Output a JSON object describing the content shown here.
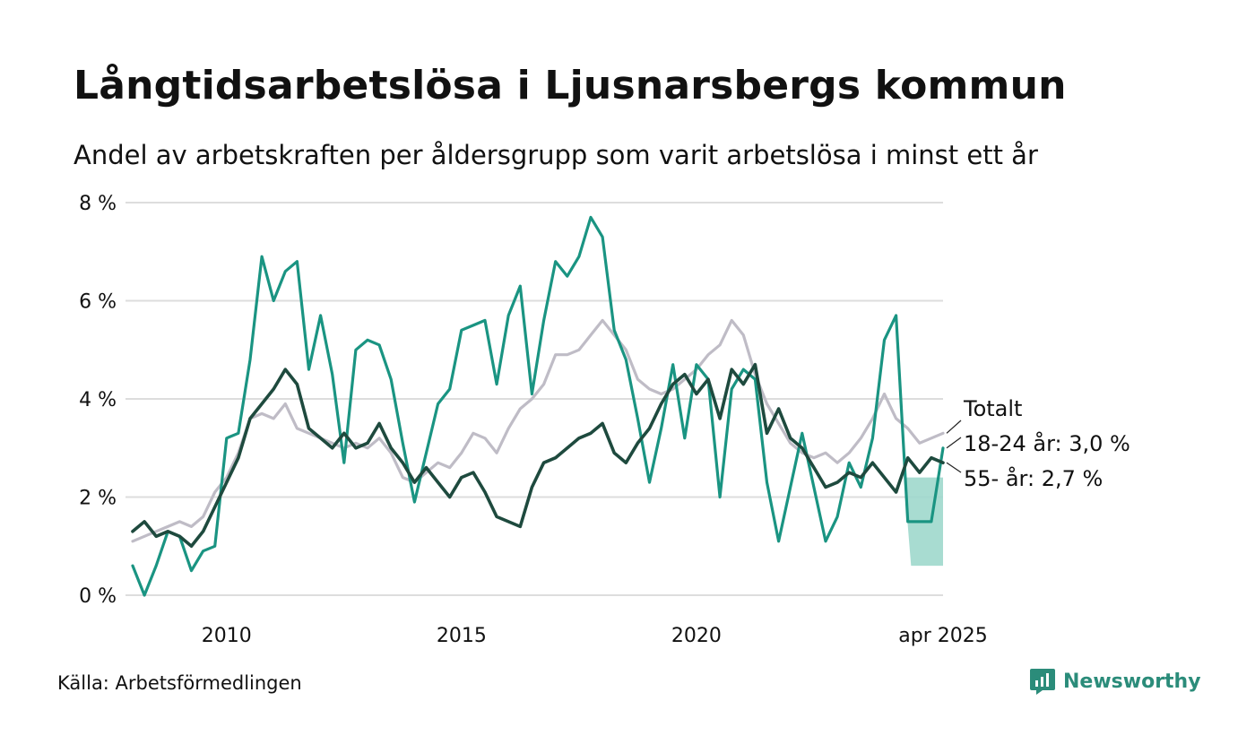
{
  "title": "Långtidsarbetslösa i Ljusnarsbergs kommun",
  "subtitle": "Andel av arbetskraften per åldersgrupp som varit arbetslösa i minst ett år",
  "source": "Källa: Arbetsförmedlingen",
  "brand": "Newsworthy",
  "colors": {
    "totalt": "#bfbcc6",
    "age_18_24": "#1a9482",
    "age_55": "#1e4a3e",
    "band": "#9fd8cc",
    "grid": "#dddddd"
  },
  "chart_data": {
    "type": "line",
    "title": "Långtidsarbetslösa i Ljusnarsbergs kommun",
    "ylabel": "",
    "xlabel": "",
    "ylim": [
      0,
      8
    ],
    "xlim": [
      "2008-01",
      "2025-04"
    ],
    "y_ticks": [
      "0 %",
      "2 %",
      "4 %",
      "6 %",
      "8 %"
    ],
    "x_ticks": [
      {
        "label": "2010",
        "date": "2010-01"
      },
      {
        "label": "2015",
        "date": "2015-01"
      },
      {
        "label": "2020",
        "date": "2020-01"
      },
      {
        "label": "apr 2025",
        "date": "2025-04"
      }
    ],
    "series": [
      {
        "name": "Totalt",
        "label": "Totalt",
        "points": [
          [
            "2008-01",
            1.1
          ],
          [
            "2008-04",
            1.2
          ],
          [
            "2008-07",
            1.3
          ],
          [
            "2008-10",
            1.4
          ],
          [
            "2009-01",
            1.5
          ],
          [
            "2009-04",
            1.4
          ],
          [
            "2009-07",
            1.6
          ],
          [
            "2009-10",
            2.1
          ],
          [
            "2010-01",
            2.4
          ],
          [
            "2010-04",
            2.9
          ],
          [
            "2010-07",
            3.6
          ],
          [
            "2010-10",
            3.7
          ],
          [
            "2011-01",
            3.6
          ],
          [
            "2011-04",
            3.9
          ],
          [
            "2011-07",
            3.4
          ],
          [
            "2011-10",
            3.3
          ],
          [
            "2012-01",
            3.2
          ],
          [
            "2012-04",
            3.1
          ],
          [
            "2012-07",
            3.0
          ],
          [
            "2012-10",
            3.1
          ],
          [
            "2013-01",
            3.0
          ],
          [
            "2013-04",
            3.2
          ],
          [
            "2013-07",
            2.9
          ],
          [
            "2013-10",
            2.4
          ],
          [
            "2014-01",
            2.3
          ],
          [
            "2014-04",
            2.5
          ],
          [
            "2014-07",
            2.7
          ],
          [
            "2014-10",
            2.6
          ],
          [
            "2015-01",
            2.9
          ],
          [
            "2015-04",
            3.3
          ],
          [
            "2015-07",
            3.2
          ],
          [
            "2015-10",
            2.9
          ],
          [
            "2016-01",
            3.4
          ],
          [
            "2016-04",
            3.8
          ],
          [
            "2016-07",
            4.0
          ],
          [
            "2016-10",
            4.3
          ],
          [
            "2017-01",
            4.9
          ],
          [
            "2017-04",
            4.9
          ],
          [
            "2017-07",
            5.0
          ],
          [
            "2017-10",
            5.3
          ],
          [
            "2018-01",
            5.6
          ],
          [
            "2018-04",
            5.3
          ],
          [
            "2018-07",
            5.0
          ],
          [
            "2018-10",
            4.4
          ],
          [
            "2019-01",
            4.2
          ],
          [
            "2019-04",
            4.1
          ],
          [
            "2019-07",
            4.2
          ],
          [
            "2019-10",
            4.4
          ],
          [
            "2020-01",
            4.6
          ],
          [
            "2020-04",
            4.9
          ],
          [
            "2020-07",
            5.1
          ],
          [
            "2020-10",
            5.6
          ],
          [
            "2021-01",
            5.3
          ],
          [
            "2021-04",
            4.5
          ],
          [
            "2021-07",
            3.9
          ],
          [
            "2021-10",
            3.5
          ],
          [
            "2022-01",
            3.1
          ],
          [
            "2022-04",
            2.9
          ],
          [
            "2022-07",
            2.8
          ],
          [
            "2022-10",
            2.9
          ],
          [
            "2023-01",
            2.7
          ],
          [
            "2023-04",
            2.9
          ],
          [
            "2023-07",
            3.2
          ],
          [
            "2023-10",
            3.6
          ],
          [
            "2024-01",
            4.1
          ],
          [
            "2024-04",
            3.6
          ],
          [
            "2024-07",
            3.4
          ],
          [
            "2024-10",
            3.1
          ],
          [
            "2025-01",
            3.2
          ],
          [
            "2025-04",
            3.3
          ]
        ]
      },
      {
        "name": "18-24 år",
        "label": "18-24 år: 3,0 %",
        "points": [
          [
            "2008-01",
            0.6
          ],
          [
            "2008-04",
            0.0
          ],
          [
            "2008-07",
            0.6
          ],
          [
            "2008-10",
            1.3
          ],
          [
            "2009-01",
            1.2
          ],
          [
            "2009-04",
            0.5
          ],
          [
            "2009-07",
            0.9
          ],
          [
            "2009-10",
            1.0
          ],
          [
            "2010-01",
            3.2
          ],
          [
            "2010-04",
            3.3
          ],
          [
            "2010-07",
            4.8
          ],
          [
            "2010-10",
            6.9
          ],
          [
            "2011-01",
            6.0
          ],
          [
            "2011-04",
            6.6
          ],
          [
            "2011-07",
            6.8
          ],
          [
            "2011-10",
            4.6
          ],
          [
            "2012-01",
            5.7
          ],
          [
            "2012-04",
            4.5
          ],
          [
            "2012-07",
            2.7
          ],
          [
            "2012-10",
            5.0
          ],
          [
            "2013-01",
            5.2
          ],
          [
            "2013-04",
            5.1
          ],
          [
            "2013-07",
            4.4
          ],
          [
            "2013-10",
            3.1
          ],
          [
            "2014-01",
            1.9
          ],
          [
            "2014-04",
            2.9
          ],
          [
            "2014-07",
            3.9
          ],
          [
            "2014-10",
            4.2
          ],
          [
            "2015-01",
            5.4
          ],
          [
            "2015-04",
            5.5
          ],
          [
            "2015-07",
            5.6
          ],
          [
            "2015-10",
            4.3
          ],
          [
            "2016-01",
            5.7
          ],
          [
            "2016-04",
            6.3
          ],
          [
            "2016-07",
            4.1
          ],
          [
            "2016-10",
            5.6
          ],
          [
            "2017-01",
            6.8
          ],
          [
            "2017-04",
            6.5
          ],
          [
            "2017-07",
            6.9
          ],
          [
            "2017-10",
            7.7
          ],
          [
            "2018-01",
            7.3
          ],
          [
            "2018-04",
            5.4
          ],
          [
            "2018-07",
            4.8
          ],
          [
            "2018-10",
            3.6
          ],
          [
            "2019-01",
            2.3
          ],
          [
            "2019-04",
            3.4
          ],
          [
            "2019-07",
            4.7
          ],
          [
            "2019-10",
            3.2
          ],
          [
            "2020-01",
            4.7
          ],
          [
            "2020-04",
            4.4
          ],
          [
            "2020-07",
            2.0
          ],
          [
            "2020-10",
            4.2
          ],
          [
            "2021-01",
            4.6
          ],
          [
            "2021-04",
            4.4
          ],
          [
            "2021-07",
            2.3
          ],
          [
            "2021-10",
            1.1
          ],
          [
            "2022-01",
            2.2
          ],
          [
            "2022-04",
            3.3
          ],
          [
            "2022-07",
            2.2
          ],
          [
            "2022-10",
            1.1
          ],
          [
            "2023-01",
            1.6
          ],
          [
            "2023-04",
            2.7
          ],
          [
            "2023-07",
            2.2
          ],
          [
            "2023-10",
            3.2
          ],
          [
            "2024-01",
            5.2
          ],
          [
            "2024-04",
            5.7
          ],
          [
            "2024-07",
            1.5
          ],
          [
            "2024-10",
            1.5
          ],
          [
            "2025-01",
            1.5
          ],
          [
            "2025-04",
            3.0
          ]
        ],
        "uncertainty_band": {
          "from": "2024-06",
          "to": "2025-04",
          "low": 0.6,
          "high": 2.4
        }
      },
      {
        "name": "55- år",
        "label": "55- år: 2,7 %",
        "points": [
          [
            "2008-01",
            1.3
          ],
          [
            "2008-04",
            1.5
          ],
          [
            "2008-07",
            1.2
          ],
          [
            "2008-10",
            1.3
          ],
          [
            "2009-01",
            1.2
          ],
          [
            "2009-04",
            1.0
          ],
          [
            "2009-07",
            1.3
          ],
          [
            "2009-10",
            1.8
          ],
          [
            "2010-01",
            2.3
          ],
          [
            "2010-04",
            2.8
          ],
          [
            "2010-07",
            3.6
          ],
          [
            "2010-10",
            3.9
          ],
          [
            "2011-01",
            4.2
          ],
          [
            "2011-04",
            4.6
          ],
          [
            "2011-07",
            4.3
          ],
          [
            "2011-10",
            3.4
          ],
          [
            "2012-01",
            3.2
          ],
          [
            "2012-04",
            3.0
          ],
          [
            "2012-07",
            3.3
          ],
          [
            "2012-10",
            3.0
          ],
          [
            "2013-01",
            3.1
          ],
          [
            "2013-04",
            3.5
          ],
          [
            "2013-07",
            3.0
          ],
          [
            "2013-10",
            2.7
          ],
          [
            "2014-01",
            2.3
          ],
          [
            "2014-04",
            2.6
          ],
          [
            "2014-07",
            2.3
          ],
          [
            "2014-10",
            2.0
          ],
          [
            "2015-01",
            2.4
          ],
          [
            "2015-04",
            2.5
          ],
          [
            "2015-07",
            2.1
          ],
          [
            "2015-10",
            1.6
          ],
          [
            "2016-01",
            1.5
          ],
          [
            "2016-04",
            1.4
          ],
          [
            "2016-07",
            2.2
          ],
          [
            "2016-10",
            2.7
          ],
          [
            "2017-01",
            2.8
          ],
          [
            "2017-04",
            3.0
          ],
          [
            "2017-07",
            3.2
          ],
          [
            "2017-10",
            3.3
          ],
          [
            "2018-01",
            3.5
          ],
          [
            "2018-04",
            2.9
          ],
          [
            "2018-07",
            2.7
          ],
          [
            "2018-10",
            3.1
          ],
          [
            "2019-01",
            3.4
          ],
          [
            "2019-04",
            3.9
          ],
          [
            "2019-07",
            4.3
          ],
          [
            "2019-10",
            4.5
          ],
          [
            "2020-01",
            4.1
          ],
          [
            "2020-04",
            4.4
          ],
          [
            "2020-07",
            3.6
          ],
          [
            "2020-10",
            4.6
          ],
          [
            "2021-01",
            4.3
          ],
          [
            "2021-04",
            4.7
          ],
          [
            "2021-07",
            3.3
          ],
          [
            "2021-10",
            3.8
          ],
          [
            "2022-01",
            3.2
          ],
          [
            "2022-04",
            3.0
          ],
          [
            "2022-07",
            2.6
          ],
          [
            "2022-10",
            2.2
          ],
          [
            "2023-01",
            2.3
          ],
          [
            "2023-04",
            2.5
          ],
          [
            "2023-07",
            2.4
          ],
          [
            "2023-10",
            2.7
          ],
          [
            "2024-01",
            2.4
          ],
          [
            "2024-04",
            2.1
          ],
          [
            "2024-07",
            2.8
          ],
          [
            "2024-10",
            2.5
          ],
          [
            "2025-01",
            2.8
          ],
          [
            "2025-04",
            2.7
          ]
        ]
      }
    ],
    "legend": "direct labels at right end of lines"
  }
}
